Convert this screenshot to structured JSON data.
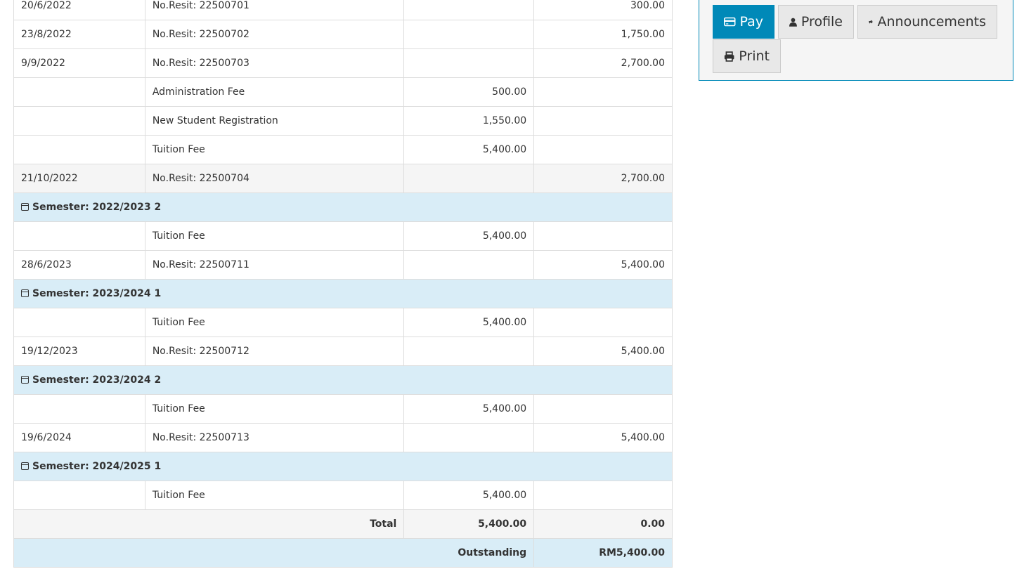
{
  "rows": [
    {
      "type": "row",
      "date": "20/6/2022",
      "desc": "No.Resit: 22500701",
      "debit": "",
      "credit": "300.00"
    },
    {
      "type": "row",
      "date": "23/8/2022",
      "desc": "No.Resit: 22500702",
      "debit": "",
      "credit": "1,750.00"
    },
    {
      "type": "row",
      "date": "9/9/2022",
      "desc": "No.Resit: 22500703",
      "debit": "",
      "credit": "2,700.00"
    },
    {
      "type": "row",
      "date": "",
      "desc": "Administration Fee",
      "debit": "500.00",
      "credit": ""
    },
    {
      "type": "row",
      "date": "",
      "desc": "New Student Registration",
      "debit": "1,550.00",
      "credit": ""
    },
    {
      "type": "row",
      "date": "",
      "desc": "Tuition Fee",
      "debit": "5,400.00",
      "credit": ""
    },
    {
      "type": "gray",
      "date": "21/10/2022",
      "desc": "No.Resit: 22500704",
      "debit": "",
      "credit": "2,700.00"
    },
    {
      "type": "sem",
      "label": "Semester: 2022/2023 2"
    },
    {
      "type": "row",
      "date": "",
      "desc": "Tuition Fee",
      "debit": "5,400.00",
      "credit": ""
    },
    {
      "type": "row",
      "date": "28/6/2023",
      "desc": "No.Resit: 22500711",
      "debit": "",
      "credit": "5,400.00"
    },
    {
      "type": "sem",
      "label": "Semester: 2023/2024 1"
    },
    {
      "type": "row",
      "date": "",
      "desc": "Tuition Fee",
      "debit": "5,400.00",
      "credit": ""
    },
    {
      "type": "row",
      "date": "19/12/2023",
      "desc": "No.Resit: 22500712",
      "debit": "",
      "credit": "5,400.00"
    },
    {
      "type": "sem",
      "label": "Semester: 2023/2024 2"
    },
    {
      "type": "row",
      "date": "",
      "desc": "Tuition Fee",
      "debit": "5,400.00",
      "credit": ""
    },
    {
      "type": "row",
      "date": "19/6/2024",
      "desc": "No.Resit: 22500713",
      "debit": "",
      "credit": "5,400.00"
    },
    {
      "type": "sem",
      "label": "Semester: 2024/2025 1"
    },
    {
      "type": "row",
      "date": "",
      "desc": "Tuition Fee",
      "debit": "5,400.00",
      "credit": ""
    }
  ],
  "total": {
    "label": "Total",
    "debit": "5,400.00",
    "credit": "0.00"
  },
  "outstanding": {
    "label": "Outstanding",
    "amount": "RM5,400.00"
  },
  "actions": {
    "pay": "Pay",
    "profile": "Profile",
    "announcements": "Announcements",
    "print": "Print"
  },
  "colors": {
    "primary": "#0089b8",
    "semester_bg": "#d9edf7"
  }
}
